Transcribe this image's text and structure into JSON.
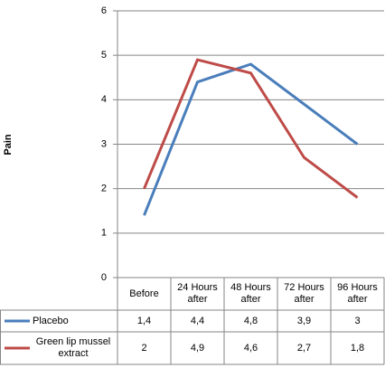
{
  "chart_data": {
    "type": "line",
    "y_label": "Pain",
    "categories": [
      "Before",
      "24 Hours after",
      "48 Hours after",
      "72 Hours after",
      "96 Hours after"
    ],
    "series": [
      {
        "name": "Placebo",
        "color": "#4a7ebb",
        "values": [
          1.4,
          4.4,
          4.8,
          3.9,
          3
        ],
        "value_labels": [
          "1,4",
          "4,4",
          "4,8",
          "3,9",
          "3"
        ]
      },
      {
        "name": "Green lip mussel extract",
        "color": "#be4b48",
        "values": [
          2,
          4.9,
          4.6,
          2.7,
          1.8
        ],
        "value_labels": [
          "2",
          "4,9",
          "4,6",
          "2,7",
          "1,8"
        ]
      }
    ],
    "ylim": [
      0,
      6
    ],
    "yticks": [
      0,
      1,
      2,
      3,
      4,
      5,
      6
    ],
    "grid": true,
    "legend": "table"
  }
}
